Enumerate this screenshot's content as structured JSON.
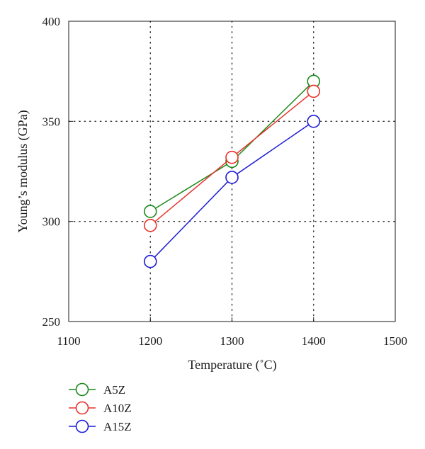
{
  "chart_data": {
    "type": "line",
    "title": "",
    "xlabel": "Temperature (˚C)",
    "ylabel": "Young’s modulus (GPa)",
    "xlim": [
      1100,
      1500
    ],
    "ylim": [
      250,
      400
    ],
    "xticks": [
      1100,
      1200,
      1300,
      1400,
      1500
    ],
    "yticks": [
      250,
      300,
      350,
      400
    ],
    "x": [
      1200,
      1300,
      1400
    ],
    "grid": "dotted",
    "legend_position": "bottom-left",
    "series": [
      {
        "name": "A5Z",
        "color": "#1a8a1a",
        "values": [
          305,
          330,
          370
        ]
      },
      {
        "name": "A10Z",
        "color": "#e8322c",
        "values": [
          298,
          332,
          365
        ]
      },
      {
        "name": "A15Z",
        "color": "#1c1cd6",
        "values": [
          280,
          322,
          350
        ]
      }
    ]
  }
}
